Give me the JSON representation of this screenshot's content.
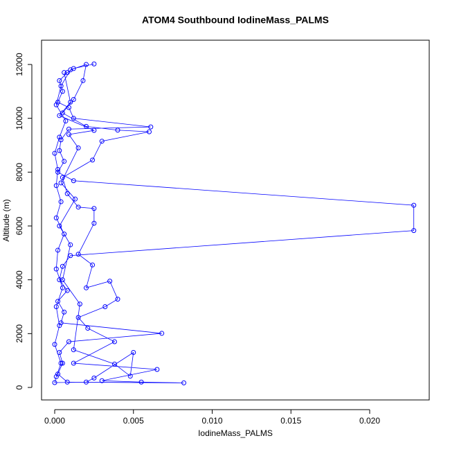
{
  "chart_data": {
    "type": "line",
    "title": "ATOM4 Southbound IodineMass_PALMS",
    "x_label": "IodineMass_PALMS",
    "y_label": "Altitude (m)",
    "color": "#0000ff",
    "xlim": [
      -0.000835,
      0.02378
    ],
    "ylim": [
      -464,
      12902
    ],
    "xticks": [
      {
        "value": 0,
        "label": "0.000"
      },
      {
        "value": 0.005,
        "label": "0.005"
      },
      {
        "value": 0.01,
        "label": "0.010"
      },
      {
        "value": 0.015,
        "label": "0.015"
      },
      {
        "value": 0.02,
        "label": "0.020"
      }
    ],
    "yticks": [
      0,
      2000,
      4000,
      6000,
      8000,
      10000,
      12000
    ],
    "x": [
      0.0025,
      0.0012,
      0.0008,
      0.0003,
      0.0005,
      0.0002,
      0.0009,
      0.0012,
      0.0061,
      0.0009,
      0.0004,
      0.0003,
      0.0006,
      0.0002,
      0.0012,
      0.0228,
      0.0228,
      0.001,
      0.0005,
      0.0003,
      0.0008,
      0.0002,
      0.0006,
      0.0004,
      0.0068,
      0.0009,
      0.0003,
      0.0005,
      0.0002,
      0.0008,
      0.0082,
      0.0055,
      0.003,
      0.0065,
      0.0012,
      0.0038,
      0.0021,
      0.0015,
      0.0032,
      0.004,
      0.0035,
      0.002,
      0.0024,
      0.0015,
      0.0025,
      0.0025,
      0.0015,
      0.0008,
      0.0005,
      0.0024,
      0.003,
      0.006,
      0.004,
      0.002,
      0.0005,
      0.0012,
      0.0018,
      0.002,
      0.001,
      0.0004,
      0.0001,
      0.0007,
      0.0003,
      0.0,
      0.0002,
      0.0001,
      0.0004,
      0.0001,
      0.0006,
      0.0002,
      0.0001,
      0.0005,
      0.0001,
      0.0003,
      0.0,
      0.0004,
      0.0001,
      0.0,
      0.002,
      0.0025,
      0.005,
      0.0048,
      0.0038,
      0.0012,
      0.0016,
      0.0005,
      0.001,
      0.0003,
      0.0013,
      0.0004,
      0.0015,
      0.0009,
      0.0025,
      0.0003,
      0.001,
      0.0006
    ],
    "values": [
      12020,
      11850,
      11700,
      11400,
      11000,
      10600,
      10400,
      10000,
      9680,
      9600,
      9200,
      8800,
      8400,
      8000,
      7680,
      6770,
      5830,
      4900,
      4500,
      4000,
      3600,
      3200,
      2800,
      2400,
      2010,
      1700,
      1300,
      900,
      500,
      200,
      170,
      200,
      250,
      670,
      900,
      1700,
      2200,
      2600,
      3000,
      3280,
      3950,
      3700,
      4550,
      4950,
      6100,
      6650,
      6700,
      7200,
      7800,
      8450,
      9150,
      9500,
      9560,
      9700,
      10200,
      10700,
      11400,
      12000,
      11800,
      11200,
      10500,
      9900,
      9300,
      8700,
      8100,
      7500,
      6900,
      6300,
      5700,
      5100,
      4400,
      3700,
      3000,
      2300,
      1600,
      900,
      400,
      180,
      200,
      350,
      1300,
      420,
      870,
      1400,
      3100,
      4000,
      5300,
      6000,
      7000,
      7600,
      8900,
      9400,
      9550,
      10100,
      10600,
      11700
    ]
  }
}
